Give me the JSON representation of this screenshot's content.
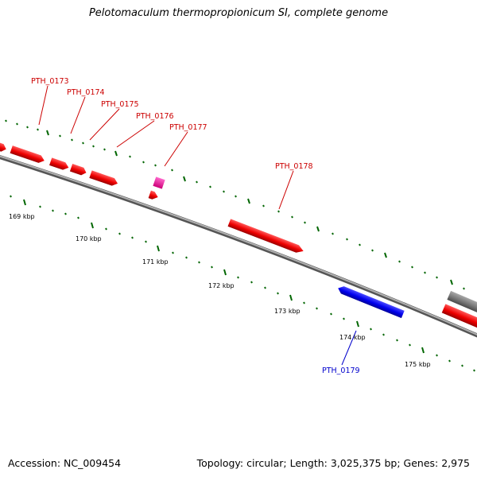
{
  "title": "Pelotomaculum thermopropionicum SI, complete genome",
  "footer": {
    "accession": "Accession: NC_009454",
    "info": "Topology: circular; Length: 3,025,375 bp; Genes: 2,975"
  },
  "colors": {
    "forward_gene": "#ff0000",
    "reverse_gene": "#0000ff",
    "rna_gene": "#ff0099",
    "other_feature": "#777777",
    "backbone": "#888888",
    "ticks": "#006600"
  },
  "genes": [
    {
      "id": "PTH_0173",
      "label": "PTH_0173",
      "strand": "forward"
    },
    {
      "id": "PTH_0174",
      "label": "PTH_0174",
      "strand": "forward"
    },
    {
      "id": "PTH_0175",
      "label": "PTH_0175",
      "strand": "forward"
    },
    {
      "id": "PTH_0176",
      "label": "PTH_0176",
      "strand": "forward"
    },
    {
      "id": "PTH_0177",
      "label": "PTH_0177",
      "strand": "forward"
    },
    {
      "id": "PTH_0178",
      "label": "PTH_0178",
      "strand": "forward"
    },
    {
      "id": "PTH_0179",
      "label": "PTH_0179",
      "strand": "reverse"
    }
  ],
  "scale_labels": [
    "169 kbp",
    "170 kbp",
    "171 kbp",
    "172 kbp",
    "173 kbp",
    "174 kbp",
    "175 kbp"
  ]
}
